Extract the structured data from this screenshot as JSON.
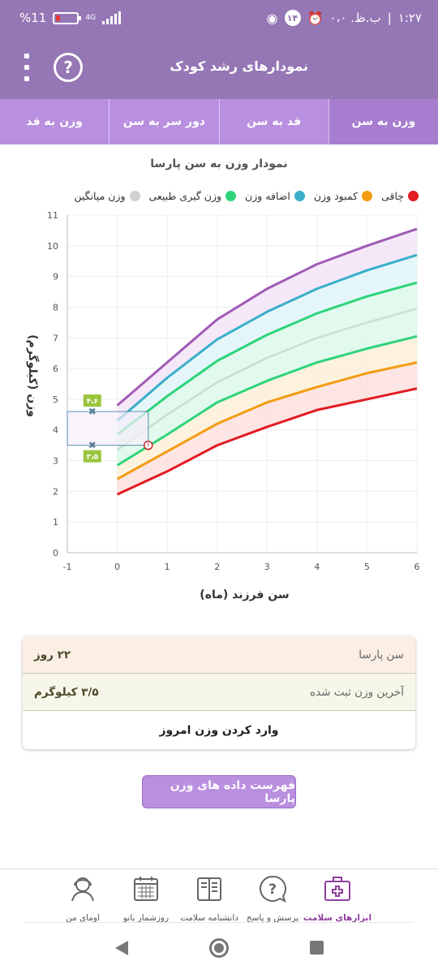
{
  "status_bar": {
    "time": "۱:۲۷",
    "date": "ب.ظ. ۰،۰",
    "badge": "۱۴",
    "battery_pct": "%11",
    "network": "4G"
  },
  "app_bar": {
    "title": "نمودارهای رشد کودک",
    "help_glyph": "?"
  },
  "tabs": [
    {
      "label": "وزن به سن",
      "active": true
    },
    {
      "label": "قد به سن",
      "active": false
    },
    {
      "label": "دور سر به سن",
      "active": false
    },
    {
      "label": "وزن به قد",
      "active": false
    }
  ],
  "chart_title": "نمودار وزن به سن پارسا",
  "legend": [
    {
      "label": "چاقی",
      "color": "#e31b23"
    },
    {
      "label": "کمبود وزن",
      "color": "#f39c12"
    },
    {
      "label": "اضافه وزن",
      "color": "#3aafc9"
    },
    {
      "label": "وزن گیری طبیعی",
      "color": "#2ed47a"
    },
    {
      "label": "وزن میانگین",
      "color": "#d0d0d0"
    }
  ],
  "chart_data": {
    "type": "line",
    "xlabel": "سن فرزند (ماه)",
    "ylabel": "وزن (کیلوگرم)",
    "x_ticks": [
      "-1",
      "0",
      "1",
      "2",
      "3",
      "4",
      "5",
      "6"
    ],
    "y_ticks": [
      "0",
      "1",
      "2",
      "3",
      "4",
      "5",
      "6",
      "7",
      "8",
      "9",
      "10",
      "11"
    ],
    "xlim": [
      -1,
      6
    ],
    "ylim": [
      0,
      11
    ],
    "x": [
      0,
      1,
      2,
      3,
      4,
      5,
      6
    ],
    "series": [
      {
        "key": "obese",
        "color": "#a05ab5",
        "values": [
          4.8,
          6.2,
          7.6,
          8.6,
          9.4,
          10.0,
          10.55
        ]
      },
      {
        "key": "overweight",
        "color": "#3aafc9",
        "values": [
          4.3,
          5.7,
          6.95,
          7.85,
          8.6,
          9.2,
          9.7
        ]
      },
      {
        "key": "normal_high",
        "color": "#2ed47a",
        "values": [
          3.85,
          5.1,
          6.25,
          7.1,
          7.8,
          8.35,
          8.8
        ]
      },
      {
        "key": "median",
        "color": "#c7e0cd",
        "values": [
          3.35,
          4.5,
          5.55,
          6.35,
          7.0,
          7.5,
          7.95
        ]
      },
      {
        "key": "normal_low",
        "color": "#2ed47a",
        "values": [
          2.85,
          3.85,
          4.9,
          5.6,
          6.2,
          6.65,
          7.05
        ]
      },
      {
        "key": "underweight",
        "color": "#f39c12",
        "values": [
          2.4,
          3.3,
          4.2,
          4.9,
          5.4,
          5.85,
          6.2
        ]
      },
      {
        "key": "severe",
        "color": "#e31b23",
        "values": [
          1.9,
          2.65,
          3.5,
          4.1,
          4.65,
          5.0,
          5.35
        ]
      }
    ],
    "child_point": {
      "x": 0.62,
      "y": 3.5
    },
    "range_markers": [
      {
        "x": -0.5,
        "y": 4.6,
        "label": "۴،۶"
      },
      {
        "x": -0.5,
        "y": 3.5,
        "label": "۳،۵"
      }
    ]
  },
  "info": {
    "age_label": "سن پارسا",
    "age_value": "۲۲ روز",
    "weight_label": "آخرین وزن ثبت شده",
    "weight_value": "۳/۵ کیلوگرم",
    "enter_weight": "وارد کردن وزن امروز"
  },
  "list_button": "فهرست داده های وزن پارسا",
  "bottom_nav": [
    {
      "label": "ابزارهای سلامت",
      "icon": "medical-kit-icon",
      "active": true
    },
    {
      "label": "پرسش و پاسخ",
      "icon": "question-bubble-icon",
      "active": false
    },
    {
      "label": "دانشنامه سلامت",
      "icon": "encyclopedia-icon",
      "active": false
    },
    {
      "label": "روزشمار بانو",
      "icon": "calendar-icon",
      "active": false
    },
    {
      "label": "اومای من",
      "icon": "profile-icon",
      "active": false
    }
  ]
}
